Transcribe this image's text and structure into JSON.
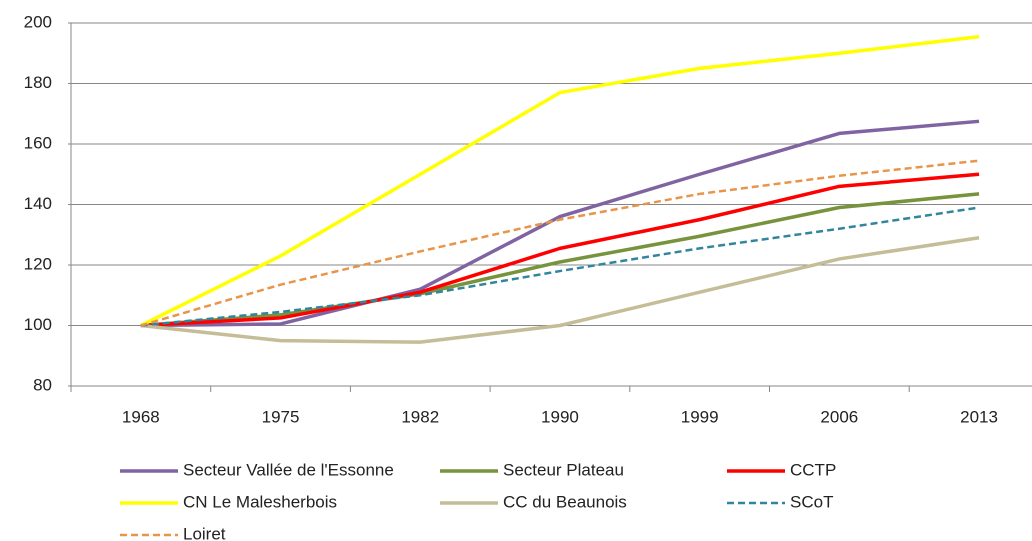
{
  "chart_data": {
    "type": "line",
    "categories": [
      "1968",
      "1975",
      "1982",
      "1990",
      "1999",
      "2006",
      "2013"
    ],
    "series": [
      {
        "name": "Secteur Vallée de l'Essonne",
        "color": "#8064a2",
        "dashed": false,
        "values": [
          100,
          100.5,
          112,
          136,
          150,
          163.5,
          167.5
        ]
      },
      {
        "name": "Secteur Plateau",
        "color": "#77933c",
        "dashed": false,
        "values": [
          100,
          103.5,
          110.5,
          121,
          129.5,
          139,
          143.5
        ]
      },
      {
        "name": "CCTP",
        "color": "#ff0000",
        "dashed": false,
        "values": [
          100,
          102.5,
          111,
          125.5,
          135,
          146,
          150
        ]
      },
      {
        "name": "CN Le Malesherbois",
        "color": "#ffff00",
        "dashed": false,
        "values": [
          100,
          123,
          150,
          177,
          185,
          190,
          195.5
        ]
      },
      {
        "name": "CC du Beaunois",
        "color": "#c4bd97",
        "dashed": false,
        "values": [
          100,
          95,
          94.5,
          100,
          111,
          122,
          129
        ]
      },
      {
        "name": "SCoT",
        "color": "#31859c",
        "dashed": true,
        "values": [
          100,
          104.5,
          110,
          118,
          125.5,
          132,
          139
        ]
      },
      {
        "name": "Loiret",
        "color": "#e8954a",
        "dashed": true,
        "values": [
          100,
          113.5,
          124.5,
          135,
          143.5,
          149.5,
          154.5
        ]
      }
    ],
    "ylim": [
      80,
      200
    ],
    "yticks": [
      80,
      100,
      120,
      140,
      160,
      180,
      200
    ],
    "grid": true,
    "legend": "bottom"
  }
}
